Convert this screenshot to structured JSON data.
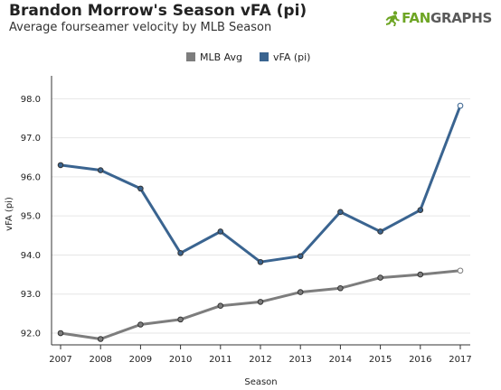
{
  "header": {
    "title": "Brandon Morrow's Season vFA (pi)",
    "subtitle": "Average fourseamer velocity by MLB Season",
    "logo_text_brand": "FAN",
    "logo_text_rest": "GRAPHS"
  },
  "colors": {
    "mlb_avg": "#7d7d7d",
    "vfa": "#3a6490",
    "logo_green": "#6ea524"
  },
  "chart_data": {
    "type": "line",
    "xlabel": "Season",
    "ylabel": "vFA (pi)",
    "x": [
      2007,
      2008,
      2009,
      2010,
      2011,
      2012,
      2013,
      2014,
      2015,
      2016,
      2017
    ],
    "ylim": [
      91.7,
      98.4
    ],
    "yticks": [
      "92.0",
      "93.0",
      "94.0",
      "95.0",
      "96.0",
      "97.0",
      "98.0"
    ],
    "legend_position": "top-center",
    "grid": "horizontal",
    "series": [
      {
        "name": "MLB Avg",
        "color": "#7d7d7d",
        "values": [
          92.0,
          91.85,
          92.22,
          92.35,
          92.7,
          92.8,
          93.05,
          93.15,
          93.42,
          93.5,
          93.6
        ]
      },
      {
        "name": "vFA (pi)",
        "color": "#3a6490",
        "values": [
          96.3,
          96.17,
          95.7,
          94.05,
          94.6,
          93.82,
          93.97,
          95.1,
          94.6,
          95.15,
          97.82
        ]
      }
    ]
  }
}
